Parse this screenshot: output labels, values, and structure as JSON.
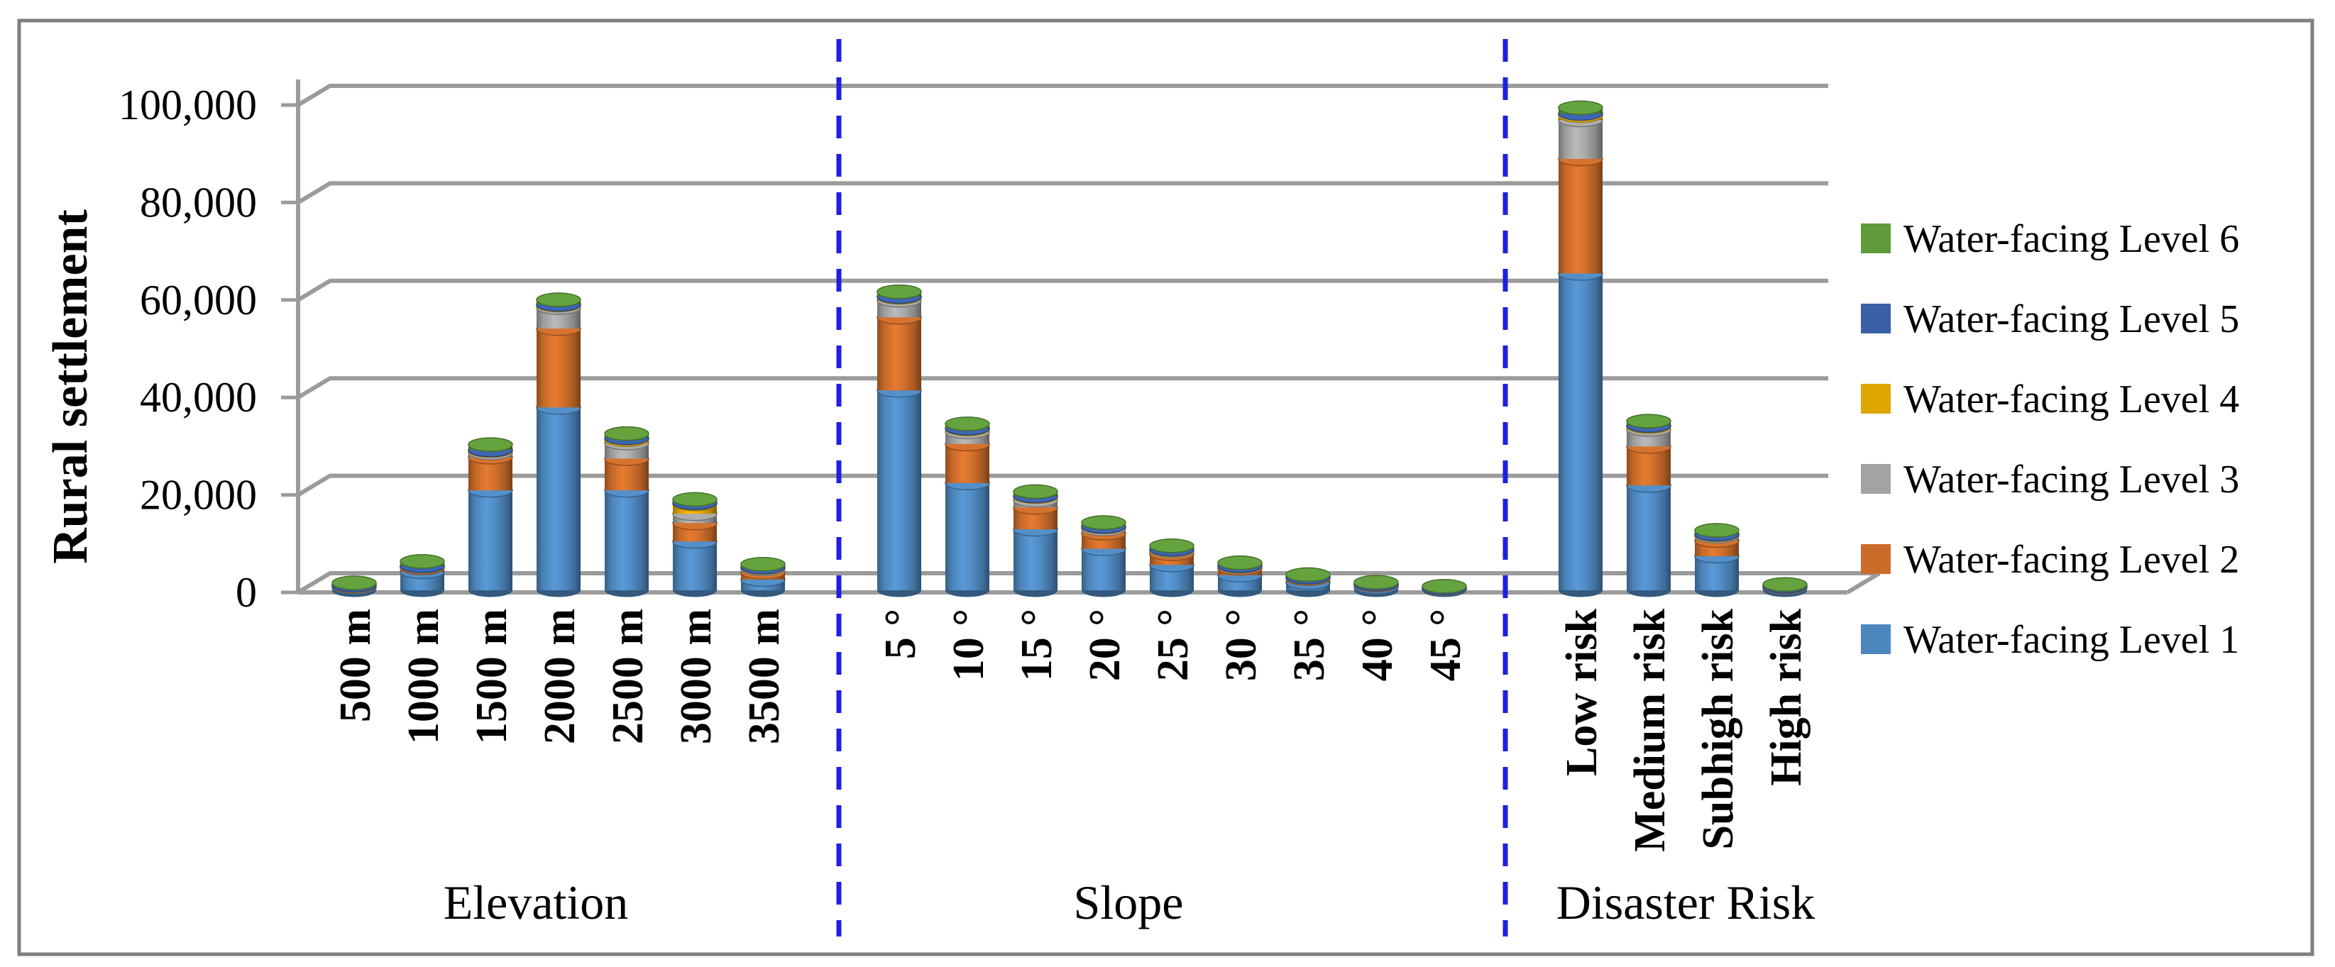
{
  "figure": {
    "background": "#ffffff",
    "border_color": "#7f7f7f"
  },
  "chart_data": {
    "type": "bar",
    "subtype": "stacked-cylinder-3d",
    "title": "",
    "xlabel": "",
    "ylabel": "Rural settlement",
    "ylim": [
      0,
      100000
    ],
    "ytick_step": 20000,
    "ytick_labels": [
      "100,000",
      "80,000",
      "60,000",
      "40,000",
      "20,000",
      "0"
    ],
    "grid": true,
    "legend_position": "right",
    "groups": [
      {
        "label": "Elevation",
        "categories": [
          "500 m",
          "1000 m",
          "1500 m",
          "2000 m",
          "2500 m",
          "3000 m",
          "3500 m"
        ]
      },
      {
        "label": "Slope",
        "categories": [
          "5 °",
          "10 °",
          "15 °",
          "20 °",
          "25 °",
          "30 °",
          "35 °",
          "40 °",
          "45 °"
        ]
      },
      {
        "label": "Disaster Risk",
        "categories": [
          "Low risk",
          "Medium risk",
          "Subhigh risk",
          "High risk"
        ]
      }
    ],
    "series": [
      {
        "name": "Water-facing Level 1",
        "color": "#4e87be",
        "values": [
          600,
          3800,
          20500,
          37500,
          20500,
          10000,
          2200,
          41000,
          22000,
          12500,
          8500,
          5200,
          3100,
          1600,
          700,
          250,
          65000,
          21500,
          7000,
          500
        ]
      },
      {
        "name": "Water-facing Level 2",
        "color": "#cb6c2a",
        "values": [
          250,
          800,
          6800,
          16200,
          6500,
          3800,
          1500,
          15000,
          8000,
          4500,
          3200,
          2300,
          1400,
          800,
          350,
          120,
          23500,
          8000,
          3200,
          200
        ]
      },
      {
        "name": "Water-facing Level 3",
        "color": "#a3a3a3",
        "values": [
          120,
          250,
          900,
          4300,
          3200,
          1900,
          700,
          3500,
          2500,
          1500,
          900,
          600,
          350,
          200,
          120,
          60,
          8000,
          3500,
          900,
          80
        ]
      },
      {
        "name": "Water-facing Level 4",
        "color": "#dfa600",
        "values": [
          60,
          120,
          450,
          500,
          700,
          2000,
          250,
          600,
          600,
          700,
          400,
          250,
          150,
          80,
          50,
          30,
          900,
          600,
          300,
          40
        ]
      },
      {
        "name": "Water-facing Level 5",
        "color": "#3a60a8",
        "values": [
          40,
          60,
          150,
          150,
          350,
          250,
          100,
          150,
          150,
          150,
          100,
          80,
          50,
          40,
          30,
          20,
          400,
          200,
          100,
          30
        ]
      },
      {
        "name": "Water-facing Level 6",
        "color": "#5f9a3b",
        "values": [
          450,
          900,
          1100,
          950,
          900,
          700,
          600,
          1000,
          900,
          900,
          800,
          700,
          600,
          500,
          400,
          350,
          1200,
          900,
          800,
          350
        ]
      }
    ],
    "legend_order": [
      5,
      4,
      3,
      2,
      1,
      0
    ],
    "separators": {
      "color": "#1f1fe0",
      "style": "dashed"
    },
    "colors": {
      "gridline": "#9b9b9b",
      "axis": "#9b9b9b"
    }
  }
}
